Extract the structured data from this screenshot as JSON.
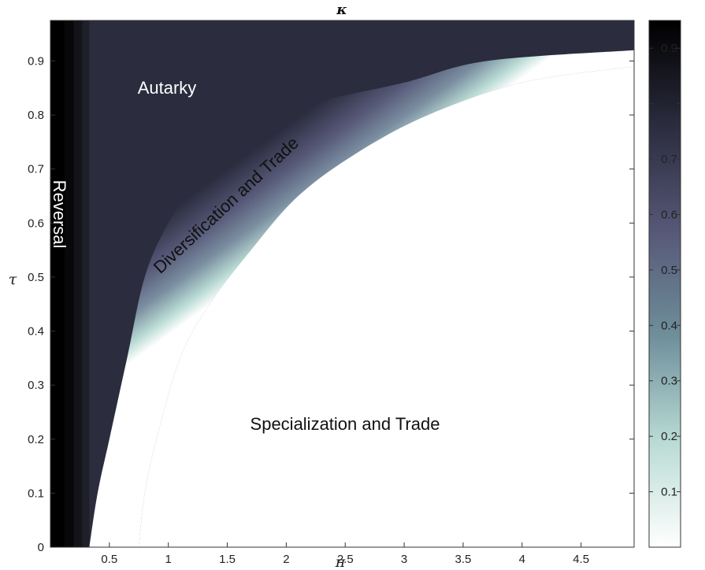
{
  "chart_data": {
    "type": "heatmap",
    "title": "κ",
    "xlabel": "π",
    "ylabel": "τ",
    "xlim": [
      0,
      4.95
    ],
    "ylim": [
      0,
      0.975
    ],
    "x_ticks": [
      0.5,
      1,
      1.5,
      2,
      2.5,
      3,
      3.5,
      4,
      4.5
    ],
    "y_ticks": [
      0,
      0.1,
      0.2,
      0.3,
      0.4,
      0.5,
      0.6,
      0.7,
      0.8,
      0.9
    ],
    "colorbar": {
      "range": [
        0,
        0.95
      ],
      "ticks": [
        0.1,
        0.2,
        0.3,
        0.4,
        0.5,
        0.6,
        0.7,
        0.8,
        0.9
      ],
      "colors": [
        "#ffffff",
        "#b9dbd4",
        "#6f8f9b",
        "#565877",
        "#2b2c3e",
        "#000000"
      ]
    },
    "region_labels": [
      {
        "text": "Autarky",
        "value": 0.74
      },
      {
        "text": "Reversal",
        "value": 0.95
      },
      {
        "text": "Diversification and Trade",
        "value": 0.45
      },
      {
        "text": "Specialization and Trade",
        "value": 0.0
      }
    ],
    "autarky_level": 0.74,
    "reversal_bands": [
      {
        "x": [
          0.0,
          0.12
        ],
        "value": 0.95
      },
      {
        "x": [
          0.12,
          0.2
        ],
        "value": 0.91
      },
      {
        "x": [
          0.2,
          0.27
        ],
        "value": 0.86
      },
      {
        "x": [
          0.27,
          0.33
        ],
        "value": 0.8
      }
    ],
    "boundary_outer": [
      [
        0.33,
        0.0
      ],
      [
        0.4,
        0.1
      ],
      [
        0.5,
        0.2
      ],
      [
        0.65,
        0.35
      ],
      [
        0.8,
        0.5
      ],
      [
        1.0,
        0.6
      ],
      [
        1.3,
        0.7
      ],
      [
        1.7,
        0.77
      ],
      [
        2.2,
        0.82
      ],
      [
        3.0,
        0.86
      ],
      [
        3.7,
        0.9
      ],
      [
        4.95,
        0.92
      ]
    ],
    "boundary_inner": [
      [
        0.75,
        0.0
      ],
      [
        0.8,
        0.1
      ],
      [
        0.9,
        0.2
      ],
      [
        1.1,
        0.35
      ],
      [
        1.35,
        0.45
      ],
      [
        1.7,
        0.55
      ],
      [
        2.1,
        0.65
      ],
      [
        2.6,
        0.73
      ],
      [
        3.2,
        0.8
      ],
      [
        4.0,
        0.86
      ],
      [
        4.95,
        0.89
      ]
    ]
  }
}
